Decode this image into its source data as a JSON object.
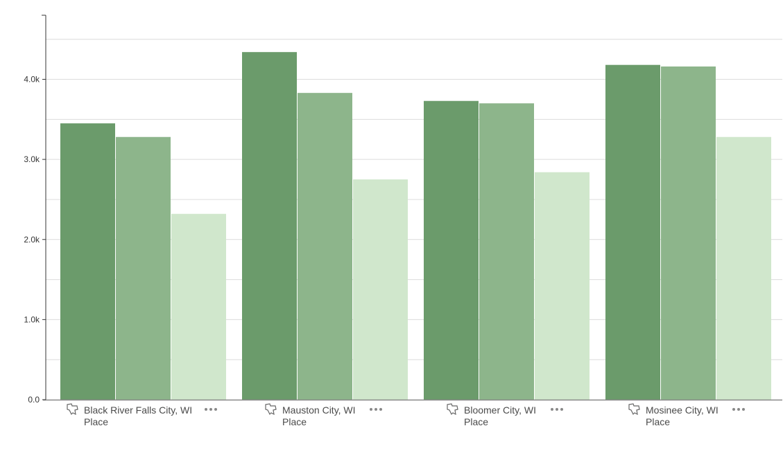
{
  "chart_data": {
    "type": "bar",
    "categories": [
      "Black River Falls City, WI",
      "Mauston City, WI",
      "Bloomer City, WI",
      "Mosinee City, WI"
    ],
    "category_type_label": "Place",
    "series": [
      {
        "values": [
          3450,
          4340,
          3730,
          4180
        ],
        "color": "#6b9b6b"
      },
      {
        "values": [
          3280,
          3830,
          3700,
          4160
        ],
        "color": "#8db58b"
      },
      {
        "values": [
          2320,
          2750,
          2840,
          3280
        ],
        "color": "#d0e7cc"
      }
    ],
    "y_ticks": [
      "0.0",
      "1.0k",
      "2.0k",
      "3.0k",
      "4.0k"
    ],
    "ylim": [
      0,
      4800
    ],
    "grid": true,
    "title": "",
    "xlabel": "",
    "ylabel": ""
  },
  "icons": {
    "category_icon": "map-shape-icon",
    "more_icon": "more-options-icon"
  }
}
